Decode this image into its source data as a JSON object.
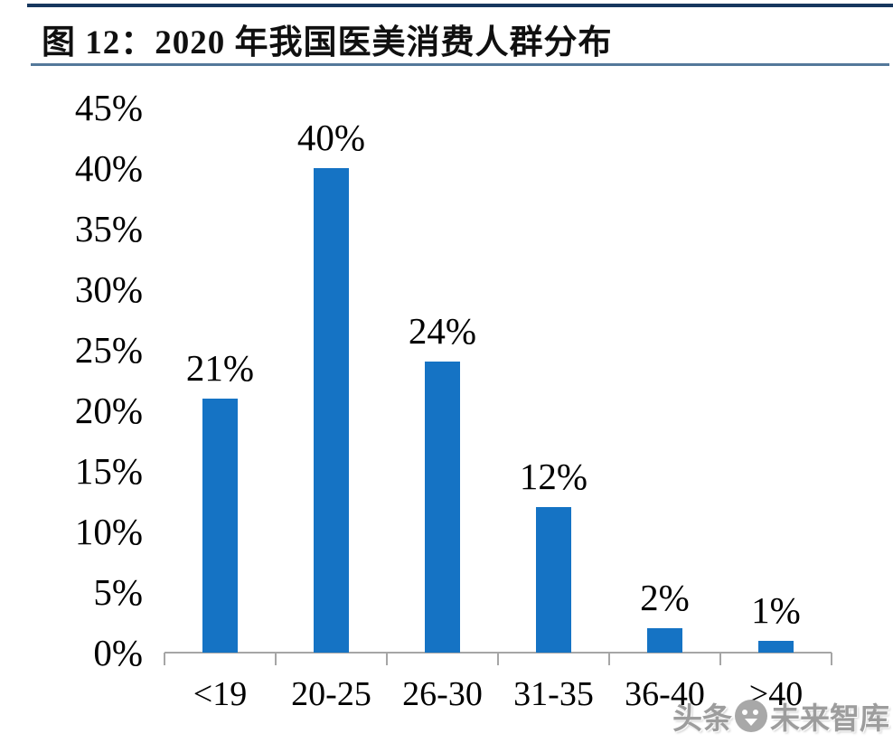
{
  "header": {
    "title": "图 12：2020 年我国医美消费人群分布",
    "accent_rule_color": "#17375E",
    "underline_color": "#54789A"
  },
  "chart_data": {
    "type": "bar",
    "title": "2020 年我国医美消费人群分布",
    "categories": [
      "<19",
      "20-25",
      "26-30",
      "31-35",
      "36-40",
      ">40"
    ],
    "values": [
      21,
      40,
      24,
      12,
      2,
      1
    ],
    "value_labels": [
      "21%",
      "40%",
      "24%",
      "12%",
      "2%",
      "1%"
    ],
    "y_ticks": [
      "45%",
      "40%",
      "35%",
      "30%",
      "25%",
      "20%",
      "15%",
      "10%",
      "5%",
      "0%"
    ],
    "y_tick_values": [
      45,
      40,
      35,
      30,
      25,
      20,
      15,
      10,
      5,
      0
    ],
    "ylim": [
      0,
      45
    ],
    "xlabel": "",
    "ylabel": "",
    "grid": false,
    "legend": false,
    "bar_color": "#1573C4",
    "axis_color": "#A6A6A6",
    "text_color": "#000000"
  },
  "watermark": {
    "prefix": "头条",
    "logo": "toutiao-face-logo",
    "suffix": "未来智库",
    "color": "#9d9d9d"
  }
}
